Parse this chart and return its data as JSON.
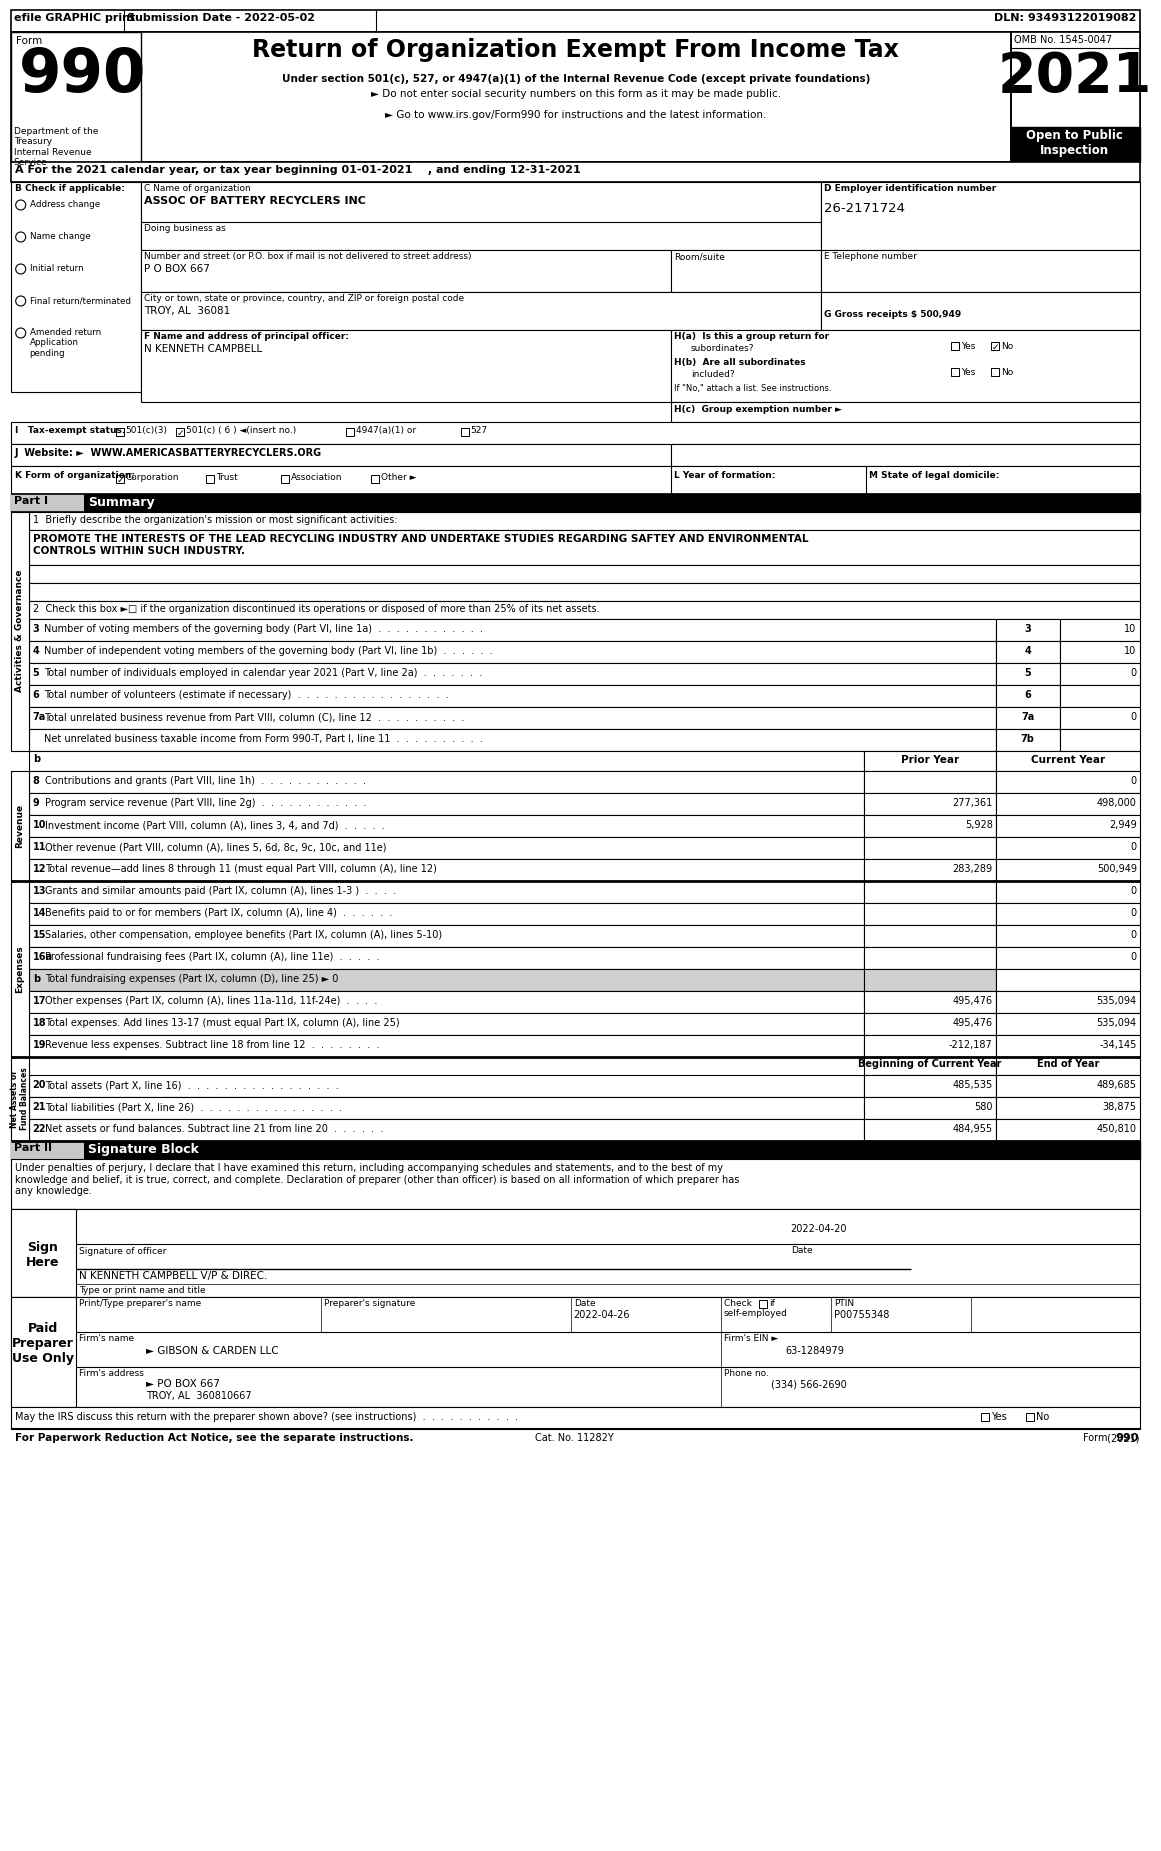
{
  "title": "Return of Organization Exempt From Income Tax",
  "subtitle1": "Under section 501(c), 527, or 4947(a)(1) of the Internal Revenue Code (except private foundations)",
  "subtitle2": "► Do not enter social security numbers on this form as it may be made public.",
  "subtitle3": "► Go to www.irs.gov/Form990 for instructions and the latest information.",
  "form_number": "990",
  "year": "2021",
  "omb": "OMB No. 1545-0047",
  "open_to_public": "Open to Public\nInspection",
  "efile_text": "efile GRAPHIC print",
  "submission_date": "Submission Date - 2022-05-02",
  "dln": "DLN: 93493122019082",
  "dept": "Department of the\nTreasury\nInternal Revenue\nService",
  "year_line": "A For the 2021 calendar year, or tax year beginning 01-01-2021    , and ending 12-31-2021",
  "b_label": "B Check if applicable:",
  "checkboxes_b": [
    "Address change",
    "Name change",
    "Initial return",
    "Final return/terminated",
    "Amended return\nApplication\npending"
  ],
  "c_label": "C Name of organization",
  "org_name": "ASSOC OF BATTERY RECYCLERS INC",
  "dba_label": "Doing business as",
  "addr_label": "Number and street (or P.O. box if mail is not delivered to street address)",
  "addr_value": "P O BOX 667",
  "room_label": "Room/suite",
  "city_label": "City or town, state or province, country, and ZIP or foreign postal code",
  "city_value": "TROY, AL  36081",
  "d_label": "D Employer identification number",
  "ein": "26-2171724",
  "e_label": "E Telephone number",
  "g_label": "G Gross receipts $ 500,949",
  "f_label": "F Name and address of principal officer:",
  "principal_officer": "N KENNETH CAMPBELL",
  "ha_label": "H(a)  Is this a group return for",
  "ha_sub": "subordinates?",
  "ha_yes": "Yes",
  "ha_no": "No",
  "hb_label": "H(b)  Are all subordinates",
  "hb_sub": "included?",
  "hb_yes": "Yes",
  "hb_no": "No",
  "hb_note": "If \"No,\" attach a list. See instructions.",
  "hc_label": "H(c)  Group exemption number ►",
  "i_label": "I   Tax-exempt status:",
  "i_options": [
    "501(c)(3)",
    "501(c) ( 6 ) ◄(insert no.)",
    "4947(a)(1) or",
    "527"
  ],
  "i_checked": 1,
  "j_label": "J  Website: ►",
  "website": "WWW.AMERICASBATTERYRECYCLERS.ORG",
  "k_label": "K Form of organization:",
  "k_options": [
    "Corporation",
    "Trust",
    "Association",
    "Other ►"
  ],
  "k_checked": 0,
  "l_label": "L Year of formation:",
  "m_label": "M State of legal domicile:",
  "part1_label": "Part I",
  "part1_title": "Summary",
  "line1_label": "1  Briefly describe the organization's mission or most significant activities:",
  "line1_text": "PROMOTE THE INTERESTS OF THE LEAD RECYCLING INDUSTRY AND UNDERTAKE STUDIES REGARDING SAFTEY AND ENVIRONMENTAL\nCONTROLS WITHIN SUCH INDUSTRY.",
  "sidebar_ag": "Activities & Governance",
  "sidebar_rev": "Revenue",
  "sidebar_exp": "Expenses",
  "sidebar_net": "Net Assets or\nFund Balances",
  "line2_text": "2  Check this box ►□ if the organization discontinued its operations or disposed of more than 25% of its net assets.",
  "lines_345": [
    [
      "3",
      "Number of voting members of the governing body (Part VI, line 1a)  .  .  .  .  .  .  .  .  .  .  .  .",
      "3",
      "10"
    ],
    [
      "4",
      "Number of independent voting members of the governing body (Part VI, line 1b)  .  .  .  .  .  .",
      "4",
      "10"
    ],
    [
      "5",
      "Total number of individuals employed in calendar year 2021 (Part V, line 2a)  .  .  .  .  .  .  .",
      "5",
      "0"
    ],
    [
      "6",
      "Total number of volunteers (estimate if necessary)  .  .  .  .  .  .  .  .  .  .  .  .  .  .  .  .  .",
      "6",
      ""
    ],
    [
      "7a",
      "Total unrelated business revenue from Part VIII, column (C), line 12  .  .  .  .  .  .  .  .  .  .",
      "7a",
      "0"
    ],
    [
      "",
      "Net unrelated business taxable income from Form 990-T, Part I, line 11  .  .  .  .  .  .  .  .  .  .",
      "7b",
      ""
    ]
  ],
  "col_headers": [
    "Prior Year",
    "Current Year"
  ],
  "revenue_lines": [
    [
      "8",
      "Contributions and grants (Part VIII, line 1h)  .  .  .  .  .  .  .  .  .  .  .  .",
      "",
      "0"
    ],
    [
      "9",
      "Program service revenue (Part VIII, line 2g)  .  .  .  .  .  .  .  .  .  .  .  .",
      "277,361",
      "498,000"
    ],
    [
      "10",
      "Investment income (Part VIII, column (A), lines 3, 4, and 7d)  .  .  .  .  .",
      "5,928",
      "2,949"
    ],
    [
      "11",
      "Other revenue (Part VIII, column (A), lines 5, 6d, 8c, 9c, 10c, and 11e)",
      "",
      "0"
    ],
    [
      "12",
      "Total revenue—add lines 8 through 11 (must equal Part VIII, column (A), line 12)",
      "283,289",
      "500,949"
    ]
  ],
  "expense_lines": [
    [
      "13",
      "Grants and similar amounts paid (Part IX, column (A), lines 1-3 )  .  .  .  .",
      "",
      "0"
    ],
    [
      "14",
      "Benefits paid to or for members (Part IX, column (A), line 4)  .  .  .  .  .  .",
      "",
      "0"
    ],
    [
      "15",
      "Salaries, other compensation, employee benefits (Part IX, column (A), lines 5-10)",
      "",
      "0"
    ],
    [
      "16a",
      "Professional fundraising fees (Part IX, column (A), line 11e)  .  .  .  .  .",
      "",
      "0"
    ],
    [
      "b",
      "Total fundraising expenses (Part IX, column (D), line 25) ► 0",
      "",
      ""
    ],
    [
      "17",
      "Other expenses (Part IX, column (A), lines 11a-11d, 11f-24e)  .  .  .  .",
      "495,476",
      "535,094"
    ],
    [
      "18",
      "Total expenses. Add lines 13-17 (must equal Part IX, column (A), line 25)",
      "495,476",
      "535,094"
    ],
    [
      "19",
      "Revenue less expenses. Subtract line 18 from line 12  .  .  .  .  .  .  .  .",
      "-212,187",
      "-34,145"
    ]
  ],
  "net_assets_headers": [
    "Beginning of Current Year",
    "End of Year"
  ],
  "net_asset_lines": [
    [
      "20",
      "Total assets (Part X, line 16)  .  .  .  .  .  .  .  .  .  .  .  .  .  .  .  .  .",
      "485,535",
      "489,685"
    ],
    [
      "21",
      "Total liabilities (Part X, line 26)  .  .  .  .  .  .  .  .  .  .  .  .  .  .  .  .",
      "580",
      "38,875"
    ],
    [
      "22",
      "Net assets or fund balances. Subtract line 21 from line 20  .  .  .  .  .  .",
      "484,955",
      "450,810"
    ]
  ],
  "part2_label": "Part II",
  "part2_title": "Signature Block",
  "sig_text": "Under penalties of perjury, I declare that I have examined this return, including accompanying schedules and statements, and to the best of my\nknowledge and belief, it is true, correct, and complete. Declaration of preparer (other than officer) is based on all information of which preparer has\nany knowledge.",
  "sign_here": "Sign\nHere",
  "sig_date": "2022-04-20",
  "sig_date_label": "Date",
  "sig_officer_label": "Signature of officer",
  "sig_name": "N KENNETH CAMPBELL V/P & DIREC.",
  "sig_title_label": "Type or print name and title",
  "paid_preparer": "Paid\nPreparer\nUse Only",
  "preparer_name_label": "Print/Type preparer's name",
  "preparer_sig_label": "Preparer's signature",
  "preparer_date_label": "Date",
  "preparer_check_label": "Check □ if\nself-employed",
  "preparer_ptin_label": "PTIN",
  "preparer_ptin": "P00755348",
  "preparer_date": "2022-04-26",
  "firm_name_label": "Firm's name",
  "firm_name": "► GIBSON & CARDEN LLC",
  "firm_ein_label": "Firm's EIN ►",
  "firm_ein": "63-1284979",
  "firm_addr_label": "Firm's address",
  "firm_addr": "► PO BOX 667",
  "firm_city": "TROY, AL  360810667",
  "phone_label": "Phone no.",
  "phone": "(334) 566-2690",
  "discuss_label": "May the IRS discuss this return with the preparer shown above? (see instructions)  .  .  .  .  .  .  .  .  .  .  .",
  "discuss_yes": "Yes",
  "discuss_no": "No",
  "footer_left": "For Paperwork Reduction Act Notice, see the separate instructions.",
  "footer_cat": "Cat. No. 11282Y",
  "footer_right": "Form 990 (2021)"
}
